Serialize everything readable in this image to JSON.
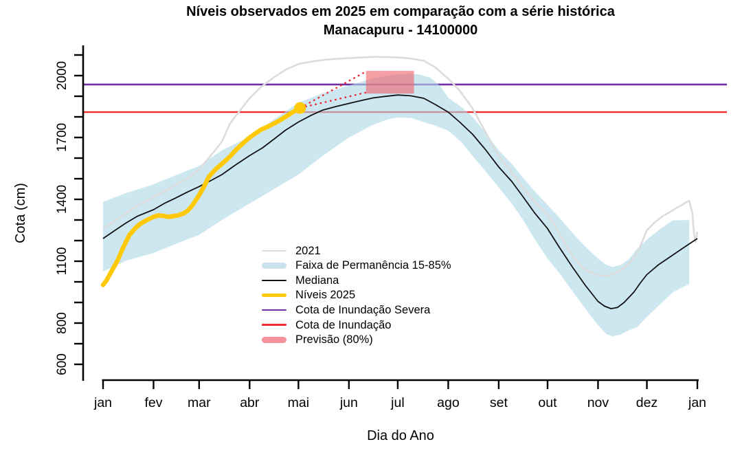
{
  "title": {
    "line1": "Níveis observados em 2025 em comparação com a série histórica",
    "line2": "Manacapuru - 14100000"
  },
  "axes": {
    "y_label": "Cota (cm)",
    "x_label": "Dia do Ano",
    "y_labeled_ticks": [
      600,
      800,
      1100,
      1400,
      1700,
      2000
    ],
    "y_minor_tick_min": 600,
    "y_minor_tick_max": 2100,
    "y_minor_step": 100,
    "month_labels": [
      "jan",
      "fev",
      "mar",
      "abr",
      "mai",
      "jun",
      "jul",
      "ago",
      "set",
      "out",
      "nov",
      "dez",
      "jan"
    ],
    "month_start_days": [
      1,
      32,
      60,
      91,
      121,
      152,
      182,
      213,
      244,
      274,
      305,
      335,
      366
    ]
  },
  "legend": {
    "items": [
      {
        "label": "2021",
        "type": "line",
        "color": "#DCDCDC",
        "thickness": 2.6
      },
      {
        "label": "Faixa de Permanência 15-85%",
        "type": "band",
        "color": "#C9E2EC",
        "thickness": 9
      },
      {
        "label": "Mediana",
        "type": "line",
        "color": "#111111",
        "thickness": 1.8
      },
      {
        "label": "Níveis 2025",
        "type": "line",
        "color": "#FFC907",
        "thickness": 5
      },
      {
        "label": "Cota de Inundação Severa",
        "type": "line",
        "color": "#7030A0",
        "thickness": 2.6
      },
      {
        "label": "Cota de Inundação",
        "type": "line",
        "color": "#EE2B2E",
        "thickness": 2.8
      },
      {
        "label": "Previsão (80%)",
        "type": "band",
        "color": "#F4939C",
        "thickness": 9
      }
    ]
  },
  "chart_data": {
    "type": "line",
    "title": "Níveis observados em 2025 em comparação com a série histórica — Manacapuru - 14100000",
    "xlabel": "Dia do Ano",
    "ylabel": "Cota (cm)",
    "x_unit": "day_of_year",
    "xlim": [
      1,
      366
    ],
    "ylim": [
      600,
      2100
    ],
    "grid": false,
    "legend_position": "center-left-inside",
    "thresholds": {
      "cota_inundacao_severa": 1957,
      "cota_inundacao": 1823,
      "severa_color": "#7030A0",
      "inundacao_color": "#EE2B2E"
    },
    "forecast_box_80pct": {
      "day_start": 162.5,
      "day_end": 192,
      "cota_min": 1913,
      "cota_max": 2023,
      "color": "rgba(240,97,106,0.60)"
    },
    "observation_dot": {
      "day": 122,
      "cota": 1843,
      "color": "#FFC907"
    },
    "connectors": {
      "color": "#EE1C24",
      "lines": [
        {
          "from": [
            122,
            1843
          ],
          "to": [
            162.5,
            2020
          ]
        },
        {
          "from": [
            122,
            1843
          ],
          "to": [
            162.5,
            1918
          ]
        }
      ]
    },
    "series": [
      {
        "name": "2021",
        "color": "#DCDCDC",
        "width": 2.6,
        "points": [
          [
            1,
            1257
          ],
          [
            8,
            1295
          ],
          [
            15,
            1332
          ],
          [
            22,
            1370
          ],
          [
            32,
            1410
          ],
          [
            39,
            1440
          ],
          [
            46,
            1472
          ],
          [
            53,
            1502
          ],
          [
            60,
            1545
          ],
          [
            67,
            1610
          ],
          [
            74,
            1680
          ],
          [
            79,
            1768
          ],
          [
            85,
            1830
          ],
          [
            91,
            1890
          ],
          [
            98,
            1945
          ],
          [
            106,
            1992
          ],
          [
            113,
            2028
          ],
          [
            121,
            2056
          ],
          [
            129,
            2068
          ],
          [
            136,
            2076
          ],
          [
            144,
            2081
          ],
          [
            152,
            2085
          ],
          [
            160,
            2088
          ],
          [
            167,
            2091
          ],
          [
            174,
            2090
          ],
          [
            182,
            2088
          ],
          [
            190,
            2083
          ],
          [
            198,
            2072
          ],
          [
            205,
            2040
          ],
          [
            213,
            1985
          ],
          [
            220,
            1928
          ],
          [
            228,
            1840
          ],
          [
            236,
            1725
          ],
          [
            244,
            1610
          ],
          [
            252,
            1530
          ],
          [
            259,
            1455
          ],
          [
            266,
            1390
          ],
          [
            274,
            1325
          ],
          [
            278,
            1280
          ],
          [
            283,
            1210
          ],
          [
            289,
            1130
          ],
          [
            295,
            1072
          ],
          [
            300,
            1048
          ],
          [
            305,
            1033
          ],
          [
            310,
            1028
          ],
          [
            315,
            1040
          ],
          [
            320,
            1062
          ],
          [
            325,
            1095
          ],
          [
            330,
            1155
          ],
          [
            335,
            1250
          ],
          [
            340,
            1290
          ],
          [
            345,
            1320
          ],
          [
            350,
            1342
          ],
          [
            353,
            1358
          ],
          [
            356,
            1370
          ],
          [
            359,
            1385
          ],
          [
            361,
            1393
          ],
          [
            363,
            1330
          ],
          [
            364,
            1230
          ],
          [
            365,
            1193
          ],
          [
            366,
            1243
          ]
        ]
      },
      {
        "name": "Mediana",
        "color": "#111111",
        "width": 1.8,
        "points": [
          [
            1,
            1210
          ],
          [
            8,
            1248
          ],
          [
            15,
            1285
          ],
          [
            22,
            1318
          ],
          [
            32,
            1350
          ],
          [
            39,
            1382
          ],
          [
            46,
            1408
          ],
          [
            53,
            1436
          ],
          [
            60,
            1462
          ],
          [
            67,
            1490
          ],
          [
            74,
            1520
          ],
          [
            82,
            1565
          ],
          [
            91,
            1612
          ],
          [
            99,
            1650
          ],
          [
            106,
            1692
          ],
          [
            113,
            1735
          ],
          [
            121,
            1775
          ],
          [
            129,
            1808
          ],
          [
            136,
            1833
          ],
          [
            144,
            1850
          ],
          [
            152,
            1865
          ],
          [
            160,
            1880
          ],
          [
            167,
            1892
          ],
          [
            174,
            1899
          ],
          [
            182,
            1906
          ],
          [
            190,
            1902
          ],
          [
            198,
            1890
          ],
          [
            205,
            1860
          ],
          [
            213,
            1823
          ],
          [
            220,
            1775
          ],
          [
            228,
            1715
          ],
          [
            236,
            1640
          ],
          [
            244,
            1557
          ],
          [
            252,
            1487
          ],
          [
            259,
            1412
          ],
          [
            266,
            1335
          ],
          [
            274,
            1258
          ],
          [
            281,
            1170
          ],
          [
            289,
            1075
          ],
          [
            297,
            985
          ],
          [
            305,
            905
          ],
          [
            309,
            882
          ],
          [
            313,
            870
          ],
          [
            317,
            876
          ],
          [
            321,
            900
          ],
          [
            327,
            950
          ],
          [
            331,
            995
          ],
          [
            335,
            1035
          ],
          [
            342,
            1082
          ],
          [
            350,
            1125
          ],
          [
            358,
            1168
          ],
          [
            366,
            1210
          ]
        ]
      },
      {
        "name": "Níveis 2025",
        "color": "#FFC907",
        "width": 6.5,
        "points": [
          [
            1,
            985
          ],
          [
            3,
            1005
          ],
          [
            6,
            1048
          ],
          [
            10,
            1105
          ],
          [
            13,
            1160
          ],
          [
            17,
            1225
          ],
          [
            21,
            1262
          ],
          [
            24,
            1282
          ],
          [
            28,
            1300
          ],
          [
            32,
            1315
          ],
          [
            35,
            1322
          ],
          [
            38,
            1320
          ],
          [
            41,
            1315
          ],
          [
            44,
            1318
          ],
          [
            47,
            1322
          ],
          [
            50,
            1330
          ],
          [
            53,
            1345
          ],
          [
            56,
            1372
          ],
          [
            60,
            1420
          ],
          [
            63,
            1462
          ],
          [
            66,
            1510
          ],
          [
            70,
            1545
          ],
          [
            74,
            1572
          ],
          [
            79,
            1608
          ],
          [
            83,
            1643
          ],
          [
            87,
            1672
          ],
          [
            91,
            1700
          ],
          [
            95,
            1722
          ],
          [
            98,
            1738
          ],
          [
            102,
            1752
          ],
          [
            106,
            1768
          ],
          [
            110,
            1785
          ],
          [
            113,
            1800
          ],
          [
            116,
            1815
          ],
          [
            119,
            1830
          ],
          [
            122,
            1843
          ]
        ]
      }
    ],
    "band_15_85": {
      "name": "Faixa de Permanência 15-85%",
      "fill": "rgba(173,216,230,0.62)",
      "top": [
        [
          1,
          1388
        ],
        [
          15,
          1430
        ],
        [
          32,
          1473
        ],
        [
          46,
          1518
        ],
        [
          60,
          1562
        ],
        [
          74,
          1638
        ],
        [
          91,
          1703
        ],
        [
          106,
          1788
        ],
        [
          121,
          1868
        ],
        [
          136,
          1915
        ],
        [
          152,
          1952
        ],
        [
          167,
          1988
        ],
        [
          176,
          2000
        ],
        [
          182,
          2006
        ],
        [
          188,
          2010
        ],
        [
          195,
          2006
        ],
        [
          202,
          1990
        ],
        [
          208,
          1950
        ],
        [
          213,
          1893
        ],
        [
          221,
          1848
        ],
        [
          228,
          1800
        ],
        [
          236,
          1722
        ],
        [
          244,
          1638
        ],
        [
          252,
          1572
        ],
        [
          259,
          1505
        ],
        [
          266,
          1440
        ],
        [
          274,
          1373
        ],
        [
          282,
          1305
        ],
        [
          289,
          1240
        ],
        [
          297,
          1172
        ],
        [
          305,
          1113
        ],
        [
          310,
          1082
        ],
        [
          314,
          1072
        ],
        [
          319,
          1082
        ],
        [
          324,
          1110
        ],
        [
          329,
          1160
        ],
        [
          335,
          1205
        ],
        [
          343,
          1255
        ],
        [
          351,
          1298
        ],
        [
          361,
          1300
        ]
      ],
      "bottom": [
        [
          1,
          1050
        ],
        [
          15,
          1102
        ],
        [
          32,
          1140
        ],
        [
          46,
          1185
        ],
        [
          60,
          1228
        ],
        [
          74,
          1300
        ],
        [
          91,
          1380
        ],
        [
          106,
          1450
        ],
        [
          121,
          1520
        ],
        [
          136,
          1612
        ],
        [
          152,
          1700
        ],
        [
          167,
          1762
        ],
        [
          176,
          1788
        ],
        [
          182,
          1797
        ],
        [
          190,
          1795
        ],
        [
          198,
          1775
        ],
        [
          205,
          1758
        ],
        [
          213,
          1733
        ],
        [
          221,
          1678
        ],
        [
          228,
          1610
        ],
        [
          236,
          1535
        ],
        [
          244,
          1458
        ],
        [
          252,
          1380
        ],
        [
          259,
          1300
        ],
        [
          266,
          1208
        ],
        [
          274,
          1113
        ],
        [
          282,
          1035
        ],
        [
          289,
          958
        ],
        [
          297,
          872
        ],
        [
          305,
          790
        ],
        [
          310,
          748
        ],
        [
          314,
          735
        ],
        [
          319,
          745
        ],
        [
          324,
          765
        ],
        [
          329,
          780
        ],
        [
          335,
          830
        ],
        [
          343,
          890
        ],
        [
          351,
          950
        ],
        [
          361,
          990
        ]
      ]
    }
  }
}
